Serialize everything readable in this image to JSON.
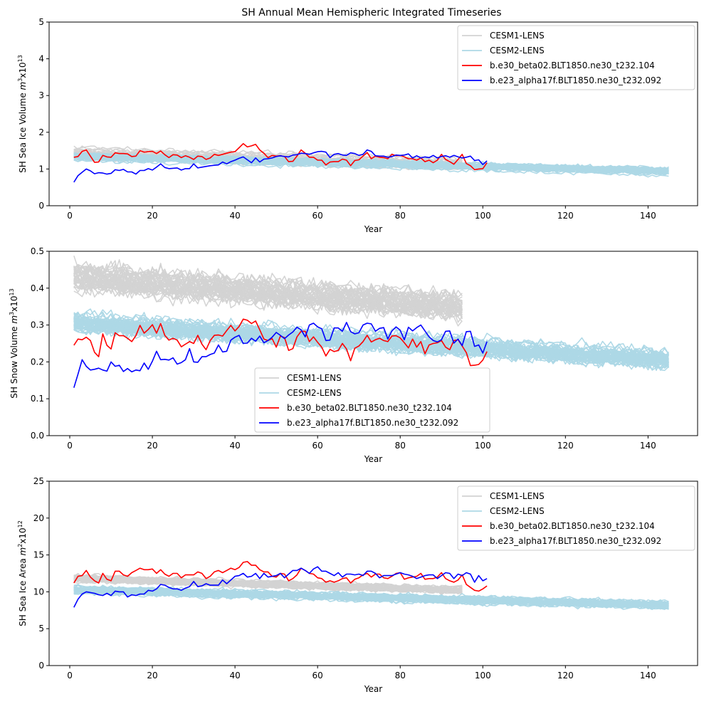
{
  "figure": {
    "title": "SH Annual Mean Hemispheric Integrated Timeseries"
  },
  "chart_data": [
    {
      "type": "line",
      "title": "SH Annual Mean Hemispheric Integrated Timeseries",
      "xlabel": "Year",
      "ylabel": "SH Sea Ice Volume m^3x10^13",
      "ylabel_parts": {
        "prefix": "SH Sea Ice Volume ",
        "unit": "m",
        "unit_exp": "3",
        "mult": "x10",
        "mult_exp": "13"
      },
      "xlim": [
        -5,
        152
      ],
      "ylim": [
        0,
        5
      ],
      "xticks": [
        0,
        20,
        40,
        60,
        80,
        100,
        120,
        140
      ],
      "yticks": [
        0,
        1,
        2,
        3,
        4,
        5
      ],
      "ytick_labels": [
        "0",
        "1",
        "2",
        "3",
        "4",
        "5"
      ],
      "legend": {
        "placement": "upper right"
      },
      "grid": false,
      "ensembles": [
        {
          "name": "CESM1-LENS",
          "color": "#d3d3d3",
          "members": 40,
          "years": [
            1,
            95
          ],
          "mean_start": 1.45,
          "mean_end": 1.15,
          "spread": 0.12,
          "noise": 0.06
        },
        {
          "name": "CESM2-LENS",
          "color": "#add8e6",
          "members": 50,
          "years": [
            1,
            145
          ],
          "mean_start": 1.35,
          "mean_end": 0.95,
          "spread": 0.08,
          "noise": 0.05
        }
      ],
      "series": [
        {
          "name": "b.e30_beta02.BLT1850.ne30_t232.104",
          "color": "#ff0000",
          "x_start": 1,
          "values": [
            1.32,
            1.34,
            1.48,
            1.52,
            1.35,
            1.18,
            1.19,
            1.37,
            1.33,
            1.32,
            1.44,
            1.42,
            1.42,
            1.41,
            1.34,
            1.35,
            1.5,
            1.46,
            1.47,
            1.48,
            1.42,
            1.49,
            1.39,
            1.31,
            1.39,
            1.38,
            1.31,
            1.36,
            1.32,
            1.26,
            1.35,
            1.34,
            1.26,
            1.3,
            1.4,
            1.37,
            1.4,
            1.43,
            1.46,
            1.47,
            1.58,
            1.69,
            1.6,
            1.63,
            1.67,
            1.52,
            1.43,
            1.31,
            1.37,
            1.35,
            1.36,
            1.34,
            1.2,
            1.21,
            1.35,
            1.52,
            1.43,
            1.32,
            1.32,
            1.24,
            1.24,
            1.11,
            1.19,
            1.2,
            1.2,
            1.27,
            1.24,
            1.09,
            1.23,
            1.25,
            1.35,
            1.45,
            1.28,
            1.35,
            1.32,
            1.31,
            1.28,
            1.4,
            1.36,
            1.37,
            1.33,
            1.28,
            1.28,
            1.24,
            1.3,
            1.2,
            1.24,
            1.17,
            1.24,
            1.4,
            1.26,
            1.2,
            1.13,
            1.26,
            1.4,
            1.15,
            1.09,
            0.98,
            1.0,
            1.01,
            1.17
          ]
        },
        {
          "name": "b.e23_alpha17f.BLT1850.ne30_t232.092",
          "color": "#0000ff",
          "x_start": 1,
          "values": [
            0.64,
            0.82,
            0.91,
            1.0,
            0.95,
            0.87,
            0.9,
            0.89,
            0.86,
            0.88,
            0.98,
            0.96,
            0.99,
            0.92,
            0.92,
            0.86,
            0.96,
            0.96,
            1.01,
            0.97,
            1.05,
            1.14,
            1.04,
            1.01,
            1.02,
            1.03,
            0.97,
            1.01,
            1.01,
            1.14,
            1.03,
            1.05,
            1.07,
            1.09,
            1.1,
            1.11,
            1.19,
            1.14,
            1.2,
            1.24,
            1.29,
            1.33,
            1.25,
            1.17,
            1.3,
            1.19,
            1.27,
            1.28,
            1.3,
            1.34,
            1.36,
            1.34,
            1.33,
            1.38,
            1.39,
            1.43,
            1.42,
            1.4,
            1.44,
            1.47,
            1.48,
            1.46,
            1.31,
            1.4,
            1.42,
            1.38,
            1.37,
            1.44,
            1.42,
            1.37,
            1.4,
            1.52,
            1.48,
            1.36,
            1.35,
            1.35,
            1.32,
            1.34,
            1.38,
            1.37,
            1.38,
            1.41,
            1.3,
            1.36,
            1.3,
            1.33,
            1.31,
            1.37,
            1.3,
            1.34,
            1.36,
            1.32,
            1.37,
            1.33,
            1.3,
            1.32,
            1.35,
            1.23,
            1.25,
            1.12,
            1.22
          ]
        }
      ]
    },
    {
      "type": "line",
      "title": "",
      "xlabel": "Year",
      "ylabel": "SH Snow Volume m^3x10^13",
      "ylabel_parts": {
        "prefix": "SH Snow Volume ",
        "unit": "m",
        "unit_exp": "3",
        "mult": "x10",
        "mult_exp": "13"
      },
      "xlim": [
        -5,
        152
      ],
      "ylim": [
        0,
        0.5
      ],
      "xticks": [
        0,
        20,
        40,
        60,
        80,
        100,
        120,
        140
      ],
      "yticks": [
        0,
        0.1,
        0.2,
        0.3,
        0.4,
        0.5
      ],
      "ytick_labels": [
        "0.0",
        "0.1",
        "0.2",
        "0.3",
        "0.4",
        "0.5"
      ],
      "legend": {
        "placement": "lower center"
      },
      "grid": false,
      "ensembles": [
        {
          "name": "CESM1-LENS",
          "color": "#d3d3d3",
          "members": 40,
          "years": [
            1,
            95
          ],
          "mean_start": 0.43,
          "mean_end": 0.35,
          "spread": 0.025,
          "noise": 0.022
        },
        {
          "name": "CESM2-LENS",
          "color": "#add8e6",
          "members": 50,
          "years": [
            1,
            145
          ],
          "mean_start": 0.305,
          "mean_end": 0.205,
          "spread": 0.018,
          "noise": 0.014
        }
      ],
      "series": [
        {
          "name": "b.e30_beta02.BLT1850.ne30_t232.104",
          "color": "#ff0000",
          "x_start": 1,
          "values": [
            0.245,
            0.262,
            0.26,
            0.267,
            0.258,
            0.226,
            0.214,
            0.276,
            0.245,
            0.235,
            0.279,
            0.271,
            0.271,
            0.264,
            0.255,
            0.271,
            0.299,
            0.278,
            0.288,
            0.301,
            0.278,
            0.304,
            0.272,
            0.259,
            0.264,
            0.259,
            0.241,
            0.248,
            0.255,
            0.25,
            0.272,
            0.248,
            0.233,
            0.258,
            0.272,
            0.273,
            0.27,
            0.285,
            0.299,
            0.284,
            0.296,
            0.316,
            0.313,
            0.304,
            0.311,
            0.287,
            0.262,
            0.258,
            0.263,
            0.24,
            0.27,
            0.266,
            0.231,
            0.236,
            0.268,
            0.283,
            0.283,
            0.255,
            0.268,
            0.253,
            0.24,
            0.216,
            0.234,
            0.228,
            0.231,
            0.25,
            0.235,
            0.203,
            0.237,
            0.243,
            0.255,
            0.272,
            0.254,
            0.26,
            0.264,
            0.258,
            0.255,
            0.27,
            0.271,
            0.265,
            0.252,
            0.238,
            0.262,
            0.24,
            0.255,
            0.222,
            0.246,
            0.25,
            0.252,
            0.258,
            0.24,
            0.233,
            0.258,
            0.26,
            0.243,
            0.225,
            0.19,
            0.191,
            0.193,
            0.205,
            0.228
          ]
        },
        {
          "name": "b.e23_alpha17f.BLT1850.ne30_t232.092",
          "color": "#0000ff",
          "x_start": 1,
          "values": [
            0.13,
            0.167,
            0.206,
            0.188,
            0.178,
            0.18,
            0.183,
            0.178,
            0.175,
            0.2,
            0.188,
            0.191,
            0.174,
            0.182,
            0.173,
            0.178,
            0.176,
            0.197,
            0.18,
            0.202,
            0.229,
            0.206,
            0.207,
            0.205,
            0.211,
            0.194,
            0.198,
            0.206,
            0.236,
            0.2,
            0.199,
            0.214,
            0.214,
            0.22,
            0.224,
            0.246,
            0.227,
            0.229,
            0.259,
            0.267,
            0.272,
            0.25,
            0.251,
            0.264,
            0.256,
            0.27,
            0.252,
            0.258,
            0.267,
            0.28,
            0.272,
            0.263,
            0.273,
            0.281,
            0.294,
            0.287,
            0.268,
            0.3,
            0.305,
            0.295,
            0.29,
            0.258,
            0.259,
            0.292,
            0.292,
            0.283,
            0.307,
            0.282,
            0.276,
            0.279,
            0.3,
            0.305,
            0.303,
            0.283,
            0.291,
            0.293,
            0.262,
            0.284,
            0.295,
            0.286,
            0.26,
            0.294,
            0.284,
            0.293,
            0.3,
            0.284,
            0.268,
            0.258,
            0.254,
            0.26,
            0.283,
            0.284,
            0.251,
            0.262,
            0.244,
            0.282,
            0.283,
            0.242,
            0.246,
            0.224,
            0.255
          ]
        }
      ]
    },
    {
      "type": "line",
      "title": "",
      "xlabel": "Year",
      "ylabel": "SH Sea Ice Area m^2x10^12",
      "ylabel_parts": {
        "prefix": "SH Sea Ice Area ",
        "unit": "m",
        "unit_exp": "2",
        "mult": "x10",
        "mult_exp": "12"
      },
      "xlim": [
        -5,
        152
      ],
      "ylim": [
        0,
        25
      ],
      "xticks": [
        0,
        20,
        40,
        60,
        80,
        100,
        120,
        140
      ],
      "yticks": [
        0,
        5,
        10,
        15,
        20,
        25
      ],
      "ytick_labels": [
        "0",
        "5",
        "10",
        "15",
        "20",
        "25"
      ],
      "legend": {
        "placement": "upper right"
      },
      "grid": false,
      "ensembles": [
        {
          "name": "CESM1-LENS",
          "color": "#d3d3d3",
          "members": 40,
          "years": [
            1,
            95
          ],
          "mean_start": 11.8,
          "mean_end": 10.2,
          "spread": 0.35,
          "noise": 0.25
        },
        {
          "name": "CESM2-LENS",
          "color": "#add8e6",
          "members": 50,
          "years": [
            1,
            145
          ],
          "mean_start": 10.3,
          "mean_end": 8.2,
          "spread": 0.35,
          "noise": 0.28
        }
      ],
      "series": [
        {
          "name": "b.e30_beta02.BLT1850.ne30_t232.104",
          "color": "#ff0000",
          "x_start": 1,
          "values": [
            11.2,
            12.1,
            12.2,
            12.9,
            12.0,
            11.5,
            11.2,
            12.5,
            11.7,
            11.5,
            12.8,
            12.8,
            12.3,
            12.1,
            12.6,
            12.9,
            13.2,
            13.0,
            13.0,
            13.1,
            12.5,
            13.0,
            12.4,
            12.1,
            12.5,
            12.5,
            11.9,
            12.3,
            12.3,
            12.3,
            12.7,
            12.5,
            11.8,
            12.1,
            12.7,
            12.9,
            12.6,
            12.9,
            13.2,
            13.0,
            13.3,
            14.0,
            14.1,
            13.6,
            13.6,
            13.0,
            12.7,
            12.7,
            12.1,
            12.0,
            12.5,
            12.4,
            11.5,
            11.8,
            12.3,
            13.2,
            12.9,
            12.5,
            12.4,
            11.9,
            11.8,
            11.3,
            11.5,
            11.3,
            11.5,
            11.8,
            11.9,
            11.2,
            11.7,
            11.9,
            12.3,
            12.5,
            12.0,
            12.4,
            12.4,
            11.9,
            11.8,
            12.1,
            12.5,
            12.6,
            11.7,
            11.9,
            12.0,
            12.1,
            12.5,
            11.7,
            11.8,
            11.8,
            12.0,
            12.6,
            11.8,
            11.5,
            11.3,
            11.6,
            12.3,
            11.0,
            10.6,
            10.2,
            10.1,
            10.4,
            10.8
          ]
        },
        {
          "name": "b.e23_alpha17f.BLT1850.ne30_t232.092",
          "color": "#0000ff",
          "x_start": 1,
          "values": [
            7.9,
            9.0,
            9.7,
            10.0,
            9.9,
            9.8,
            9.6,
            9.5,
            9.8,
            9.5,
            10.1,
            10.0,
            10.0,
            9.3,
            9.6,
            9.5,
            9.7,
            9.7,
            10.2,
            10.1,
            10.4,
            11.0,
            10.9,
            10.6,
            10.4,
            10.4,
            10.2,
            10.5,
            10.7,
            11.4,
            10.7,
            10.8,
            11.1,
            10.9,
            10.9,
            10.9,
            11.6,
            11.1,
            11.6,
            12.1,
            12.2,
            12.5,
            12.0,
            12.1,
            12.5,
            11.8,
            12.5,
            12.0,
            12.1,
            12.2,
            12.5,
            11.9,
            12.4,
            12.9,
            12.9,
            13.2,
            12.9,
            12.5,
            13.1,
            13.4,
            12.8,
            12.8,
            12.5,
            12.2,
            12.6,
            12.0,
            12.4,
            12.4,
            12.3,
            12.4,
            12.2,
            12.8,
            12.8,
            12.5,
            11.9,
            12.2,
            12.2,
            12.2,
            12.4,
            12.6,
            12.4,
            12.3,
            12.1,
            11.8,
            12.0,
            12.2,
            12.3,
            12.3,
            11.8,
            12.2,
            12.6,
            12.5,
            11.8,
            12.4,
            12.2,
            12.6,
            12.4,
            11.3,
            12.2,
            11.5,
            11.8
          ]
        }
      ]
    }
  ]
}
